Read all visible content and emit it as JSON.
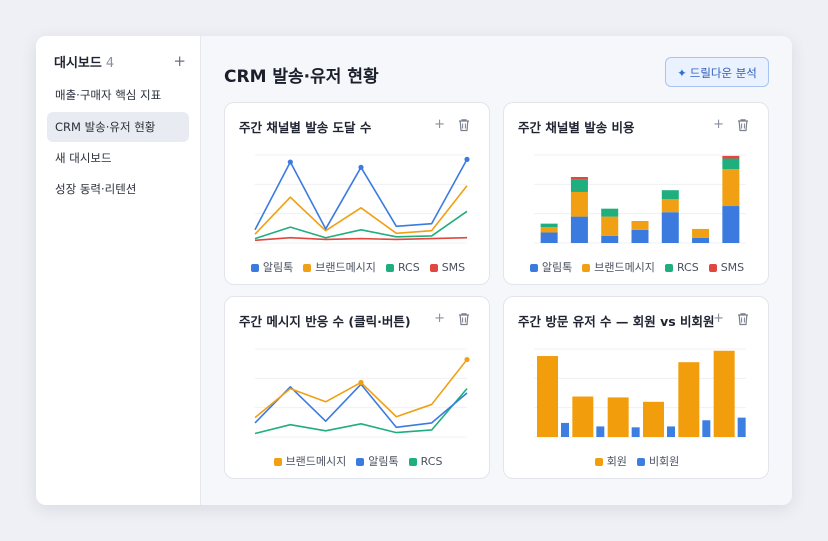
{
  "colors": {
    "alimtalk": "#3b7be0",
    "brand": "#f0a012",
    "rcs": "#1fae7d",
    "sms": "#e0473f",
    "member": "#f29d0c",
    "nonmember": "#3d7ee2"
  },
  "sidebar": {
    "title": "대시보드",
    "count": "4",
    "add_icon": "plus-icon",
    "items": [
      {
        "label": "매출·구매자 핵심 지표"
      },
      {
        "label": "CRM 발송·유저 현황"
      },
      {
        "label": "새 대시보드"
      },
      {
        "label": "성장 동력·리텐션"
      }
    ],
    "active_index": 1
  },
  "main": {
    "title": "CRM 발송·유저 현황",
    "drill_button": {
      "icon": "sparkle-icon",
      "label": "드릴다운 분석"
    }
  },
  "cards": [
    {
      "title": "주간 채널별 발송 도달 수"
    },
    {
      "title": "주간 채널별 발송 비용"
    },
    {
      "title": "주간 메시지 반응 수 (클릭·버튼)"
    },
    {
      "title": "주간 방문 유저 수 — 회원 vs 비회원"
    }
  ],
  "chart_data": [
    {
      "type": "line",
      "title": "주간 채널별 발송 도달 수",
      "series": [
        {
          "name": "알림톡",
          "values": [
            15,
            92,
            16,
            86,
            19,
            22,
            95
          ],
          "markers": [
            false,
            true,
            false,
            true,
            false,
            false,
            true
          ]
        },
        {
          "name": "브랜드메시지",
          "values": [
            10,
            52,
            14,
            40,
            11,
            14,
            65
          ]
        },
        {
          "name": "RCS",
          "values": [
            5,
            18,
            6,
            15,
            7,
            8,
            36
          ]
        },
        {
          "name": "SMS",
          "values": [
            3,
            6,
            4,
            5,
            4,
            5,
            6
          ]
        }
      ],
      "ylim": [
        0,
        100
      ],
      "grid": true,
      "legend": "bottom"
    },
    {
      "type": "bar",
      "title": "주간 채널별 발송 비용",
      "stacked": true,
      "series": [
        {
          "name": "알림톡",
          "values": [
            12,
            30,
            8,
            15,
            35,
            6,
            42
          ]
        },
        {
          "name": "브랜드메시지",
          "values": [
            6,
            28,
            22,
            10,
            15,
            10,
            42
          ]
        },
        {
          "name": "RCS",
          "values": [
            4,
            14,
            9,
            0,
            10,
            0,
            12
          ]
        },
        {
          "name": "SMS",
          "values": [
            0,
            3,
            0,
            0,
            0,
            0,
            3
          ]
        }
      ],
      "ylim": [
        0,
        100
      ],
      "legend": "bottom"
    },
    {
      "type": "line",
      "title": "주간 메시지 반응 수 (클릭·버튼)",
      "series": [
        {
          "name": "브랜드메시지",
          "values": [
            22,
            55,
            40,
            62,
            23,
            37,
            88
          ],
          "markers": [
            false,
            false,
            false,
            true,
            false,
            false,
            true
          ]
        },
        {
          "name": "알림톡",
          "values": [
            16,
            57,
            18,
            60,
            11,
            16,
            50
          ]
        },
        {
          "name": "RCS",
          "values": [
            4,
            14,
            7,
            15,
            5,
            8,
            55
          ]
        }
      ],
      "ylim": [
        0,
        100
      ],
      "grid": true,
      "legend": "bottom"
    },
    {
      "type": "bar",
      "title": "주간 방문 유저 수 — 회원 vs 비회원",
      "series": [
        {
          "name": "회원",
          "values": [
            92,
            46,
            45,
            40,
            85,
            98
          ]
        },
        {
          "name": "비회원",
          "values": [
            16,
            12,
            11,
            12,
            19,
            22
          ]
        }
      ],
      "ylim": [
        0,
        100
      ],
      "legend": "bottom"
    }
  ]
}
